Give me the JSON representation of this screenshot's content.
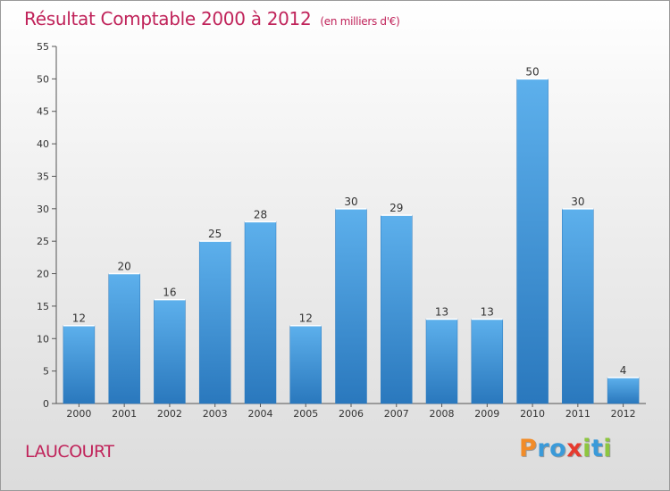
{
  "title": "Résultat Comptable 2000 à 2012",
  "subtitle": "(en milliers d'€)",
  "commune": "LAUCOURT",
  "logo": {
    "text": "Proxiti",
    "letters": [
      "P",
      "r",
      "o",
      "x",
      "i",
      "t",
      "i"
    ],
    "colors": [
      "#f28c28",
      "#3a9ad9",
      "#3a9ad9",
      "#e63a2e",
      "#8dc63f",
      "#3a9ad9",
      "#8dc63f"
    ]
  },
  "chart_data": {
    "type": "bar",
    "title": "Résultat Comptable 2000 à 2012",
    "subtitle": "(en milliers d'€)",
    "xlabel": "",
    "ylabel": "",
    "ylim": [
      0,
      55
    ],
    "yticks": [
      0,
      5,
      10,
      15,
      20,
      25,
      30,
      35,
      40,
      45,
      50,
      55
    ],
    "grid": false,
    "categories": [
      "2000",
      "2001",
      "2002",
      "2003",
      "2004",
      "2005",
      "2006",
      "2007",
      "2008",
      "2009",
      "2010",
      "2011",
      "2012"
    ],
    "values": [
      12,
      20,
      16,
      25,
      28,
      12,
      30,
      29,
      13,
      13,
      50,
      30,
      4
    ],
    "bar_color": "#4a9fe0"
  }
}
